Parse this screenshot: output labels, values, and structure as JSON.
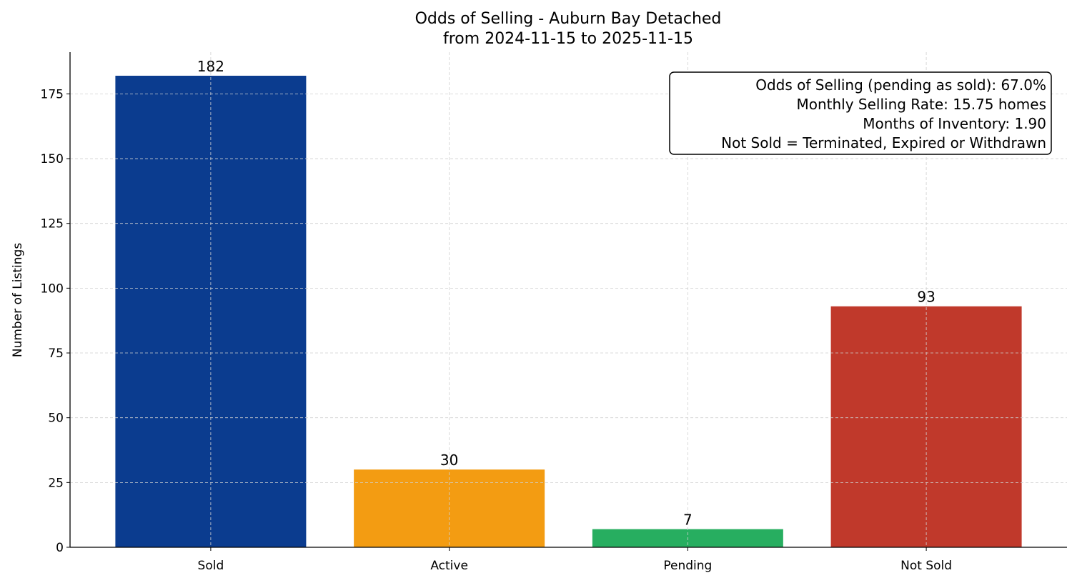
{
  "chart_data": {
    "type": "bar",
    "title": "Odds of Selling - Auburn Bay Detached",
    "subtitle": "from 2024-11-15 to 2025-11-15",
    "xlabel": "",
    "ylabel": "Number of Listings",
    "categories": [
      "Sold",
      "Active",
      "Pending",
      "Not Sold"
    ],
    "values": [
      182,
      30,
      7,
      93
    ],
    "colors": [
      "#0b3c8f",
      "#f39c12",
      "#27ae60",
      "#c0392b"
    ],
    "data_labels": [
      "182",
      "30",
      "7",
      "93"
    ],
    "ylim": [
      0,
      191.1
    ],
    "yticks": [
      0,
      25,
      50,
      75,
      100,
      125,
      150,
      175
    ],
    "grid": true,
    "annotation": {
      "position": "top-right",
      "lines": [
        "Odds of Selling (pending as sold): 67.0%",
        "Monthly Selling Rate: 15.75 homes",
        "Months of Inventory: 1.90",
        "Not Sold = Terminated, Expired or Withdrawn"
      ]
    }
  }
}
